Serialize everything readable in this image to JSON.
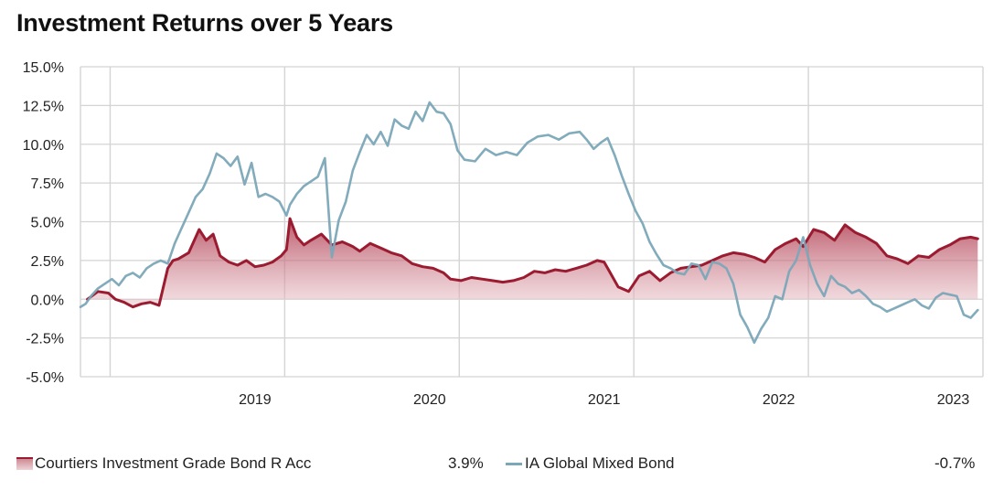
{
  "chart_data": {
    "type": "area",
    "title": "Investment Returns over 5 Years",
    "y_tick_labels": [
      "15.0%",
      "12.5%",
      "10.0%",
      "7.5%",
      "5.0%",
      "2.5%",
      "0.0%",
      "-2.5%",
      "-5.0%"
    ],
    "ylim": [
      -5,
      15
    ],
    "x_tick_labels": [
      "2019",
      "2020",
      "2021",
      "2022",
      "2023"
    ],
    "x_range": [
      "2018-02",
      "2023-02"
    ],
    "grid": true,
    "legend_position": "bottom",
    "series": [
      {
        "name": "Courtiers Investment Grade Bond R Acc",
        "color": "#9b1b30",
        "style": "area",
        "final_value_label": "3.9%",
        "x": [
          2018.04,
          2018.1,
          2018.16,
          2018.2,
          2018.25,
          2018.3,
          2018.35,
          2018.4,
          2018.45,
          2018.5,
          2018.53,
          2018.56,
          2018.62,
          2018.68,
          2018.72,
          2018.76,
          2018.8,
          2018.85,
          2018.9,
          2018.95,
          2019.0,
          2019.05,
          2019.1,
          2019.15,
          2019.18,
          2019.2,
          2019.24,
          2019.28,
          2019.32,
          2019.38,
          2019.44,
          2019.5,
          2019.56,
          2019.6,
          2019.66,
          2019.72,
          2019.78,
          2019.84,
          2019.9,
          2019.96,
          2020.02,
          2020.08,
          2020.12,
          2020.18,
          2020.24,
          2020.3,
          2020.36,
          2020.42,
          2020.48,
          2020.54,
          2020.6,
          2020.66,
          2020.72,
          2020.78,
          2020.84,
          2020.9,
          2020.96,
          2021.0,
          2021.03,
          2021.08,
          2021.14,
          2021.2,
          2021.26,
          2021.32,
          2021.38,
          2021.44,
          2021.5,
          2021.56,
          2021.62,
          2021.68,
          2021.74,
          2021.8,
          2021.86,
          2021.92,
          2021.98,
          2022.04,
          2022.1,
          2022.14,
          2022.2,
          2022.26,
          2022.32,
          2022.38,
          2022.44,
          2022.5,
          2022.56,
          2022.62,
          2022.68,
          2022.74,
          2022.8,
          2022.86,
          2022.92,
          2022.98,
          2023.04,
          2023.1,
          2023.14
        ],
        "y": [
          0.0,
          0.5,
          0.4,
          0.0,
          -0.2,
          -0.5,
          -0.3,
          -0.2,
          -0.4,
          2.0,
          2.5,
          2.6,
          3.0,
          4.5,
          3.8,
          4.2,
          2.8,
          2.4,
          2.2,
          2.5,
          2.1,
          2.2,
          2.4,
          2.8,
          3.2,
          5.2,
          4.0,
          3.5,
          3.8,
          4.2,
          3.5,
          3.7,
          3.4,
          3.1,
          3.6,
          3.3,
          3.0,
          2.8,
          2.3,
          2.1,
          2.0,
          1.7,
          1.3,
          1.2,
          1.4,
          1.3,
          1.2,
          1.1,
          1.2,
          1.4,
          1.8,
          1.7,
          1.9,
          1.8,
          2.0,
          2.2,
          2.5,
          2.4,
          1.8,
          0.8,
          0.5,
          1.5,
          1.8,
          1.2,
          1.7,
          2.0,
          2.1,
          2.2,
          2.5,
          2.8,
          3.0,
          2.9,
          2.7,
          2.4,
          3.2,
          3.6,
          3.9,
          3.4,
          4.5,
          4.3,
          3.8,
          4.8,
          4.3,
          4.0,
          3.6,
          2.8,
          2.6,
          2.3,
          2.8,
          2.7,
          3.2,
          3.5,
          3.9,
          4.0,
          3.9
        ]
      },
      {
        "name": "IA Global Mixed Bond",
        "color": "#7ba7b8",
        "style": "line",
        "final_value_label": "-0.7%",
        "x": [
          2018.0,
          2018.03,
          2018.06,
          2018.1,
          2018.14,
          2018.18,
          2018.22,
          2018.26,
          2018.3,
          2018.34,
          2018.38,
          2018.42,
          2018.46,
          2018.5,
          2018.54,
          2018.58,
          2018.62,
          2018.66,
          2018.7,
          2018.74,
          2018.78,
          2018.82,
          2018.86,
          2018.9,
          2018.94,
          2018.98,
          2019.02,
          2019.06,
          2019.1,
          2019.14,
          2019.18,
          2019.2,
          2019.24,
          2019.28,
          2019.32,
          2019.36,
          2019.4,
          2019.44,
          2019.48,
          2019.52,
          2019.56,
          2019.6,
          2019.64,
          2019.68,
          2019.72,
          2019.76,
          2019.8,
          2019.84,
          2019.88,
          2019.92,
          2019.96,
          2020.0,
          2020.04,
          2020.08,
          2020.12,
          2020.16,
          2020.2,
          2020.26,
          2020.32,
          2020.38,
          2020.44,
          2020.5,
          2020.56,
          2020.62,
          2020.68,
          2020.74,
          2020.8,
          2020.86,
          2020.9,
          2020.94,
          2020.98,
          2021.02,
          2021.06,
          2021.1,
          2021.14,
          2021.18,
          2021.22,
          2021.26,
          2021.3,
          2021.34,
          2021.38,
          2021.42,
          2021.46,
          2021.5,
          2021.54,
          2021.58,
          2021.62,
          2021.66,
          2021.7,
          2021.74,
          2021.78,
          2021.82,
          2021.86,
          2021.9,
          2021.94,
          2021.98,
          2022.02,
          2022.06,
          2022.1,
          2022.14,
          2022.18,
          2022.22,
          2022.26,
          2022.3,
          2022.34,
          2022.38,
          2022.42,
          2022.46,
          2022.5,
          2022.54,
          2022.58,
          2022.62,
          2022.66,
          2022.7,
          2022.74,
          2022.78,
          2022.82,
          2022.86,
          2022.9,
          2022.94,
          2022.98,
          2023.02,
          2023.06,
          2023.1,
          2023.14
        ],
        "y": [
          -0.5,
          -0.3,
          0.2,
          0.7,
          1.0,
          1.3,
          0.9,
          1.5,
          1.7,
          1.4,
          2.0,
          2.3,
          2.5,
          2.3,
          3.6,
          4.6,
          5.6,
          6.6,
          7.1,
          8.1,
          9.4,
          9.1,
          8.6,
          9.2,
          7.4,
          8.8,
          6.6,
          6.8,
          6.6,
          6.3,
          5.4,
          6.1,
          6.8,
          7.3,
          7.6,
          7.9,
          9.1,
          2.7,
          5.1,
          6.3,
          8.3,
          9.5,
          10.6,
          10.0,
          10.8,
          9.9,
          11.6,
          11.2,
          11.0,
          12.1,
          11.5,
          12.7,
          12.1,
          12.0,
          11.3,
          9.6,
          9.0,
          8.9,
          9.7,
          9.3,
          9.5,
          9.3,
          10.1,
          10.5,
          10.6,
          10.3,
          10.7,
          10.8,
          10.3,
          9.7,
          10.1,
          10.4,
          9.3,
          8.0,
          6.8,
          5.7,
          4.9,
          3.7,
          2.9,
          2.2,
          2.0,
          1.7,
          1.6,
          2.3,
          2.2,
          1.3,
          2.4,
          2.3,
          2.0,
          1.0,
          -1.0,
          -1.8,
          -2.8,
          -1.9,
          -1.2,
          0.2,
          0.0,
          1.8,
          2.5,
          4.0,
          2.2,
          1.0,
          0.2,
          1.5,
          1.0,
          0.8,
          0.4,
          0.6,
          0.2,
          -0.3,
          -0.5,
          -0.8,
          -0.6,
          -0.4,
          -0.2,
          0.0,
          -0.4,
          -0.6,
          0.1,
          0.4,
          0.3,
          0.2,
          -1.0,
          -1.2,
          -0.7
        ]
      }
    ]
  }
}
